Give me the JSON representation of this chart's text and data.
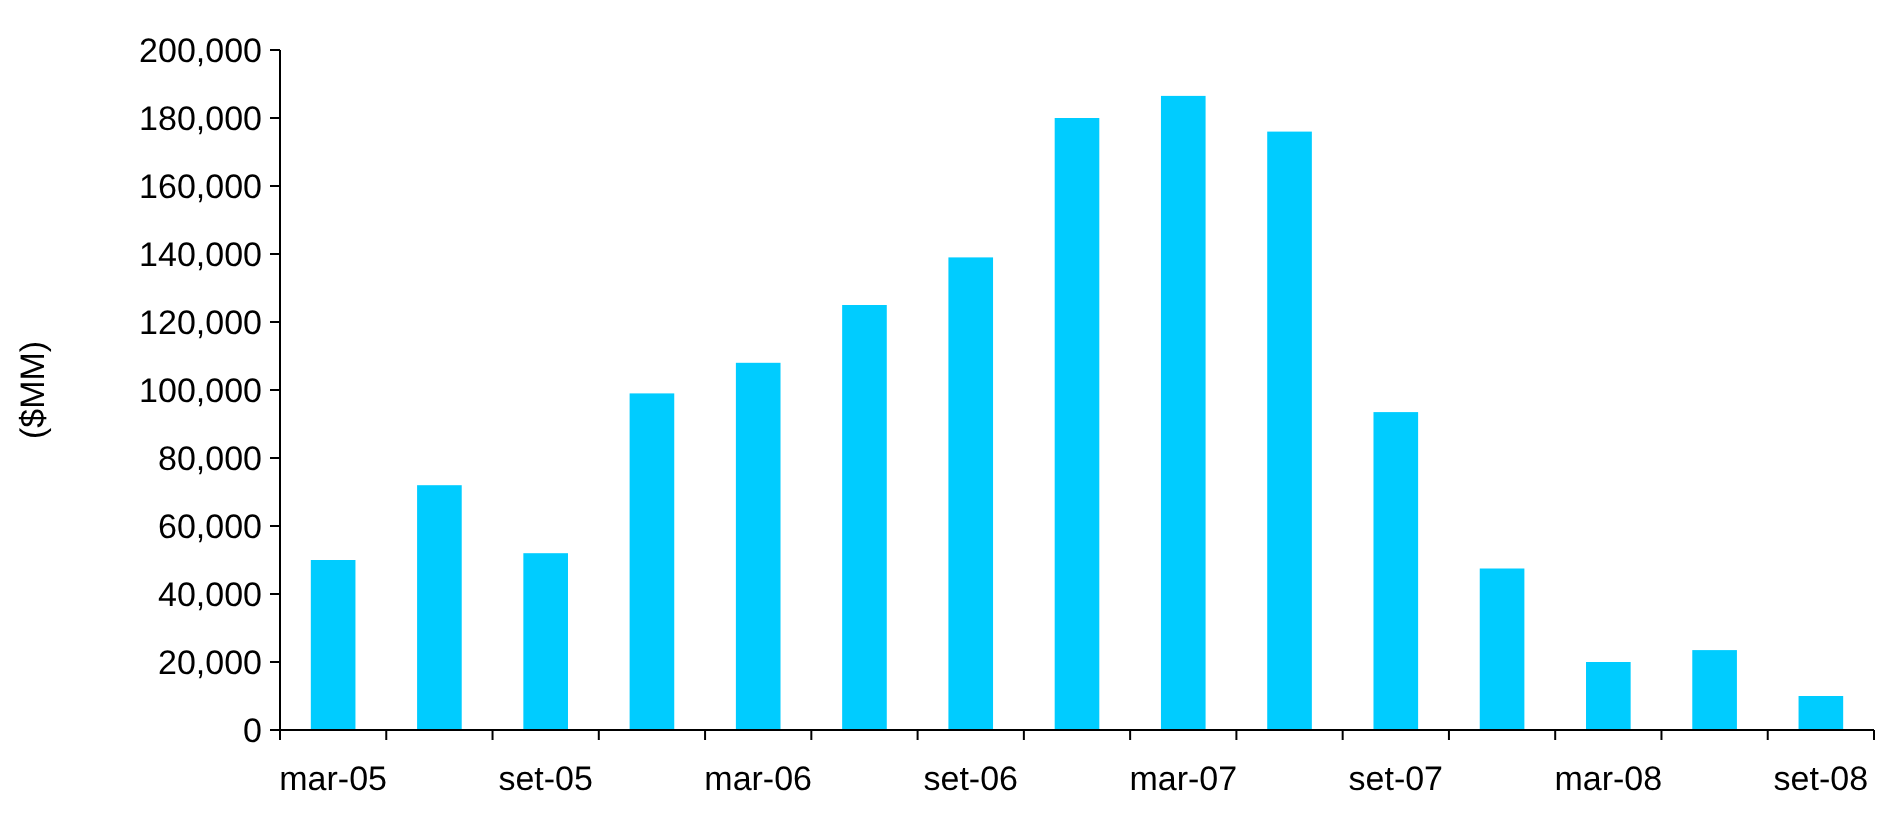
{
  "chart_data": {
    "type": "bar",
    "ylabel": "($MM)",
    "categories": [
      "mar-05",
      null,
      "set-05",
      null,
      "mar-06",
      null,
      "set-06",
      null,
      "mar-07",
      null,
      "set-07",
      null,
      "mar-08",
      null,
      "set-08"
    ],
    "values": [
      50000,
      72000,
      52000,
      99000,
      108000,
      125000,
      139000,
      180000,
      186500,
      176000,
      93500,
      47500,
      20000,
      23500,
      10000
    ],
    "color": "#00ccff",
    "ylim": [
      0,
      200000
    ],
    "yticks": [
      {
        "value": 0,
        "label": "0"
      },
      {
        "value": 20000,
        "label": "20,000"
      },
      {
        "value": 40000,
        "label": "40,000"
      },
      {
        "value": 60000,
        "label": "60,000"
      },
      {
        "value": 80000,
        "label": "80,000"
      },
      {
        "value": 100000,
        "label": "100,000"
      },
      {
        "value": 120000,
        "label": "120,000"
      },
      {
        "value": 140000,
        "label": "140,000"
      },
      {
        "value": 160000,
        "label": "160,000"
      },
      {
        "value": 180000,
        "label": "180,000"
      },
      {
        "value": 200000,
        "label": "200,000"
      }
    ],
    "grid": false
  }
}
